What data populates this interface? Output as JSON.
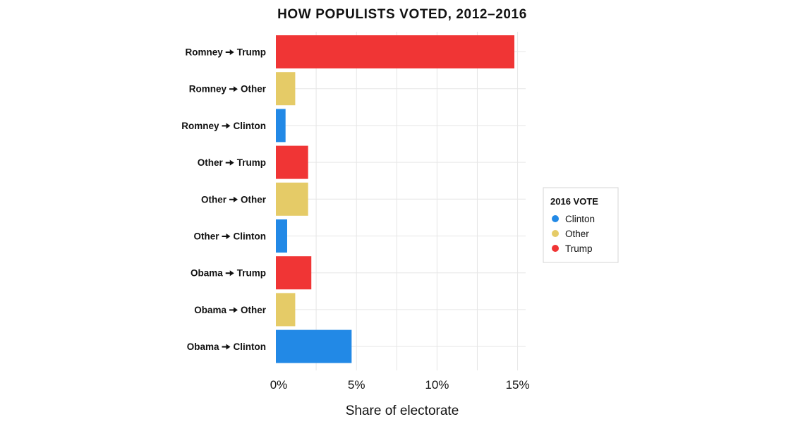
{
  "chart_data": {
    "type": "bar",
    "orientation": "horizontal",
    "title": "HOW POPULISTS VOTED, 2012–2016",
    "xlabel": "Share of electorate",
    "ylabel": "",
    "xlim": [
      0,
      15.5
    ],
    "x_ticks": [
      0,
      5,
      10,
      15
    ],
    "x_tick_labels": [
      "0%",
      "5%",
      "10%",
      "15%"
    ],
    "grid": true,
    "legend_position": "right",
    "legend_title": "2016 VOTE",
    "legend": [
      {
        "name": "Clinton",
        "color": "#2289e6"
      },
      {
        "name": "Other",
        "color": "#e5cb67"
      },
      {
        "name": "Trump",
        "color": "#f03535"
      }
    ],
    "categories": [
      {
        "from": "Romney",
        "to": "Trump"
      },
      {
        "from": "Romney",
        "to": "Other"
      },
      {
        "from": "Romney",
        "to": "Clinton"
      },
      {
        "from": "Other",
        "to": "Trump"
      },
      {
        "from": "Other",
        "to": "Other"
      },
      {
        "from": "Other",
        "to": "Clinton"
      },
      {
        "from": "Obama",
        "to": "Trump"
      },
      {
        "from": "Obama",
        "to": "Other"
      },
      {
        "from": "Obama",
        "to": "Clinton"
      }
    ],
    "values": [
      14.8,
      1.2,
      0.6,
      2.0,
      2.0,
      0.7,
      2.2,
      1.2,
      4.7
    ],
    "bar_series": [
      "Trump",
      "Other",
      "Clinton",
      "Trump",
      "Other",
      "Clinton",
      "Trump",
      "Other",
      "Clinton"
    ],
    "colors": {
      "Clinton": "#2289e6",
      "Other": "#e5cb67",
      "Trump": "#f03535",
      "grid": "#e6e6e6",
      "arrow": "#111111"
    }
  }
}
